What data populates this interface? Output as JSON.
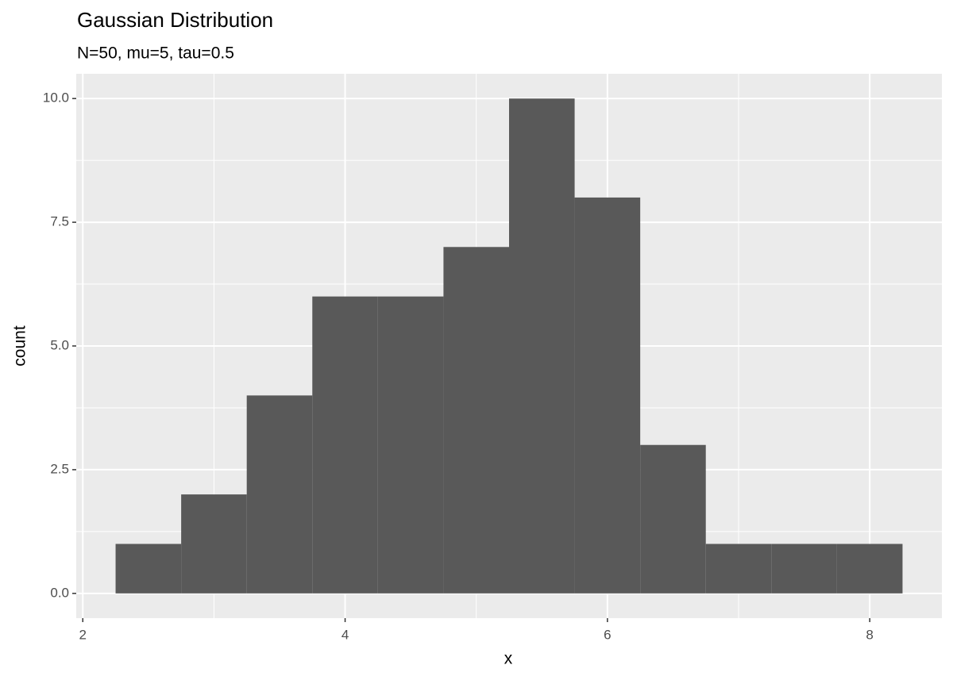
{
  "chart_data": {
    "type": "histogram",
    "title": "Gaussian Distribution",
    "subtitle": "N=50, mu=5, tau=0.5",
    "x_label": "x",
    "y_label": "count",
    "bins": [
      2.25,
      2.75,
      3.25,
      3.75,
      4.25,
      4.75,
      5.25,
      5.75,
      6.25,
      6.75,
      7.25,
      7.75,
      8.25
    ],
    "values": [
      1,
      2,
      4,
      6,
      6,
      7,
      10,
      8,
      3,
      1,
      1,
      1
    ],
    "color": "#595959",
    "xlim": [
      1.95,
      8.55
    ],
    "xticks": [
      2,
      4,
      6,
      8
    ],
    "ylim": [
      -0.5,
      10.5
    ],
    "yticks": [
      {
        "value": 0,
        "label": "0.0"
      },
      {
        "value": 2.5,
        "label": "2.5"
      },
      {
        "value": 5,
        "label": "5.0"
      },
      {
        "value": 7.5,
        "label": "7.5"
      },
      {
        "value": 10,
        "label": "10.0"
      }
    ],
    "grid": true
  }
}
